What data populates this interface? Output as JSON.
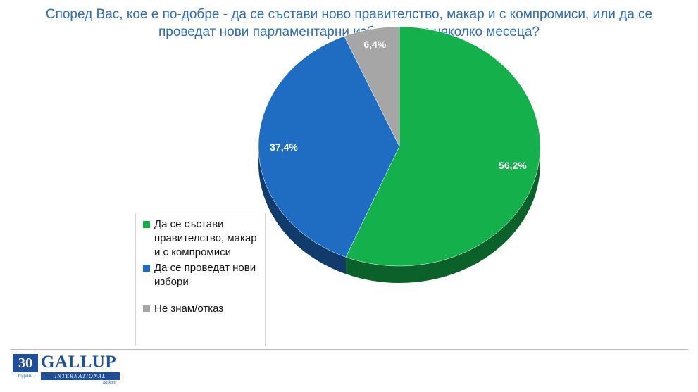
{
  "chart_data": {
    "type": "pie",
    "title": "Според Вас, кое е по-добре - да се състави ново правителство, макар и с компромиси, или да се проведат нови парламентарни избори след няколко месеца?",
    "slices": [
      {
        "name": "Да се състави правителство, макар и с компромиси",
        "value": 56.2,
        "label": "56,2%",
        "color": "#13b04b"
      },
      {
        "name": "Да се проведат нови избори",
        "value": 37.4,
        "label": "37,4%",
        "color": "#1f6cc3"
      },
      {
        "name": "Не знам/отказ",
        "value": 6.4,
        "label": "6,4%",
        "color": "#a6a6a6"
      }
    ],
    "legend_position": "left"
  },
  "legend": {
    "items": [
      {
        "label": "Да се състави правителство, макар и с компромиси",
        "color": "#13b04b"
      },
      {
        "label": "Да се проведат нови избори",
        "color": "#1f6cc3"
      },
      {
        "label": "Не знам/отказ",
        "color": "#a6a6a6"
      }
    ]
  },
  "logo": {
    "years": "30",
    "years_caption": "години",
    "brand": "GALLUP",
    "brand_sub": "INTERNATIONAL",
    "region": "Balkans"
  }
}
